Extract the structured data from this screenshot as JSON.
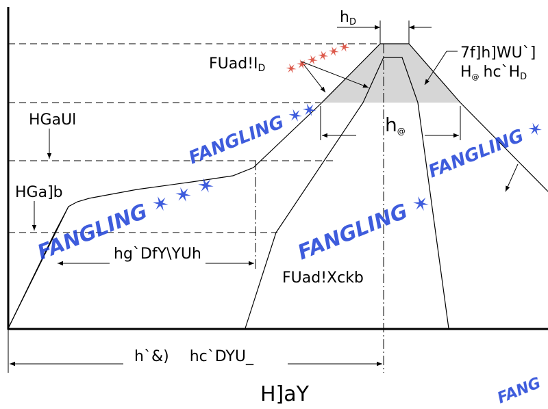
{
  "labels": {
    "t_d_top": "h",
    "t_d_top_sub": "D",
    "ramp_up_label": "FUad!I",
    "ramp_up_sub": "D",
    "cooling_label_line1": "7f]h]WU`]",
    "cooling_label_line2_a": "H",
    "cooling_label_line2_a_sub": "@",
    "cooling_label_line2_b": "hc`H",
    "cooling_label_line2_b_sub": "D",
    "t_at_main": "h",
    "t_at_sub": "@",
    "level_upper": "HGaUl",
    "level_lower": "HGa]b",
    "preheat_label": "hg`DfY\\YUh",
    "ramp_down_label": "FUad!Xckb",
    "total_time_label": "h`&)",
    "total_time_label_2": "hc`DYU_",
    "x_axis_title": "H]aY"
  },
  "colors": {
    "line": "#000000",
    "peak_shade": "#d6d6d6",
    "watermark_blue": "#1c3fd6",
    "watermark_red": "#d63a2a"
  },
  "watermark_text": "FANGLING"
}
